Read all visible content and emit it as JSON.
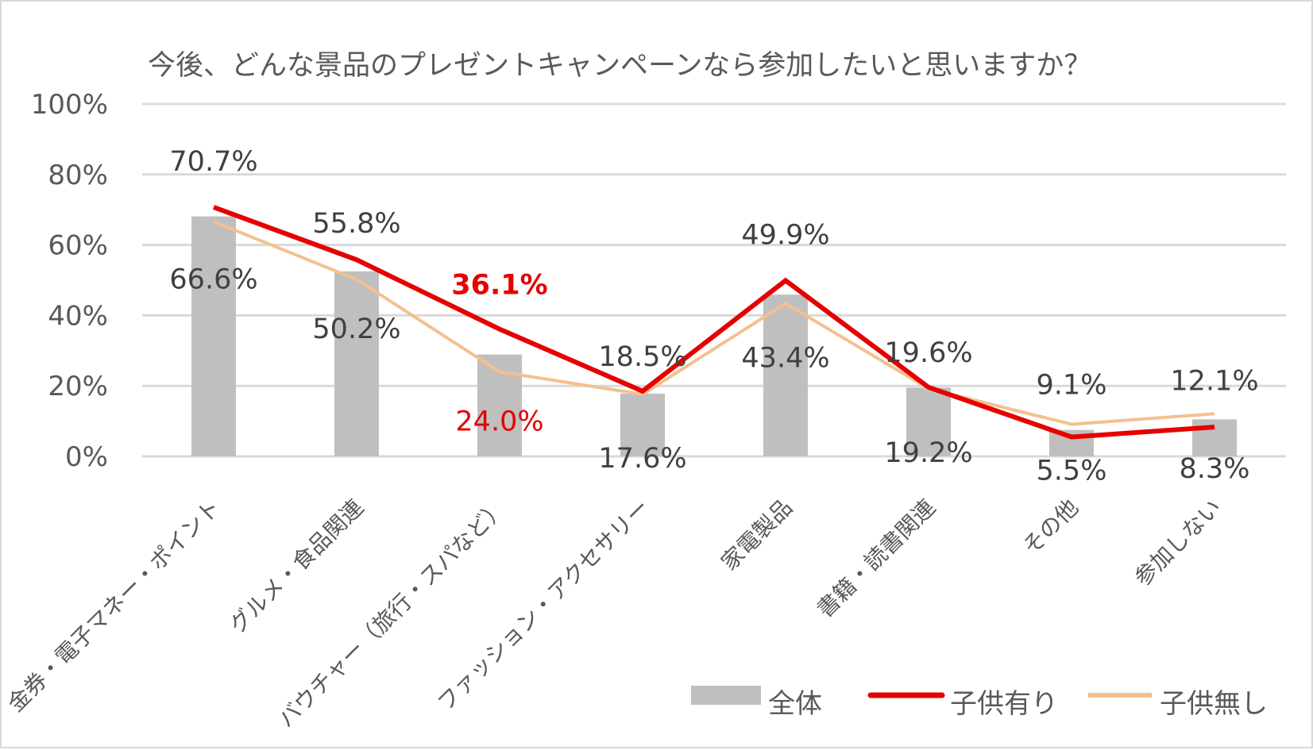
{
  "chart_data": {
    "type": "bar+line",
    "title": "今後、どんな景品のプレゼントキャンペーンなら参加したいと思いますか？",
    "categories": [
      "金券・電子マネー・ポイント",
      "グルメ・食品関連",
      "バウチャー（旅行・スパなど）",
      "ファッション・アクセサリー",
      "家電製品",
      "書籍・読書関連",
      "その他",
      "参加しない"
    ],
    "ylim": [
      0,
      100
    ],
    "yticks": [
      "0%",
      "20%",
      "40%",
      "60%",
      "80%",
      "100%"
    ],
    "ytick_values": [
      0,
      20,
      40,
      60,
      80,
      100
    ],
    "grid": true,
    "legend_position": "bottom",
    "series": [
      {
        "name": "全体",
        "kind": "bar",
        "color": "#bfbfbf",
        "values": [
          68.1,
          52.5,
          28.9,
          17.8,
          45.9,
          19.5,
          7.5,
          10.5
        ]
      },
      {
        "name": "子供有り",
        "kind": "line",
        "color": "#e60000",
        "values": [
          70.7,
          55.8,
          36.1,
          18.5,
          49.9,
          19.6,
          5.5,
          8.3
        ],
        "labels": [
          "70.7%",
          "55.8%",
          "36.1%",
          "18.5%",
          "49.9%",
          "19.6%",
          "5.5%",
          "8.3%"
        ]
      },
      {
        "name": "子供無し",
        "kind": "line",
        "color": "#f4c08f",
        "values": [
          66.6,
          50.2,
          24.0,
          17.6,
          43.4,
          19.2,
          9.1,
          12.1
        ],
        "labels": [
          "66.6%",
          "50.2%",
          "24.0%",
          "17.6%",
          "43.4%",
          "19.2%",
          "9.1%",
          "12.1%"
        ]
      }
    ],
    "highlight_color": "#e60000",
    "text_color": "#404040",
    "grid_color": "#d9d9d9"
  }
}
